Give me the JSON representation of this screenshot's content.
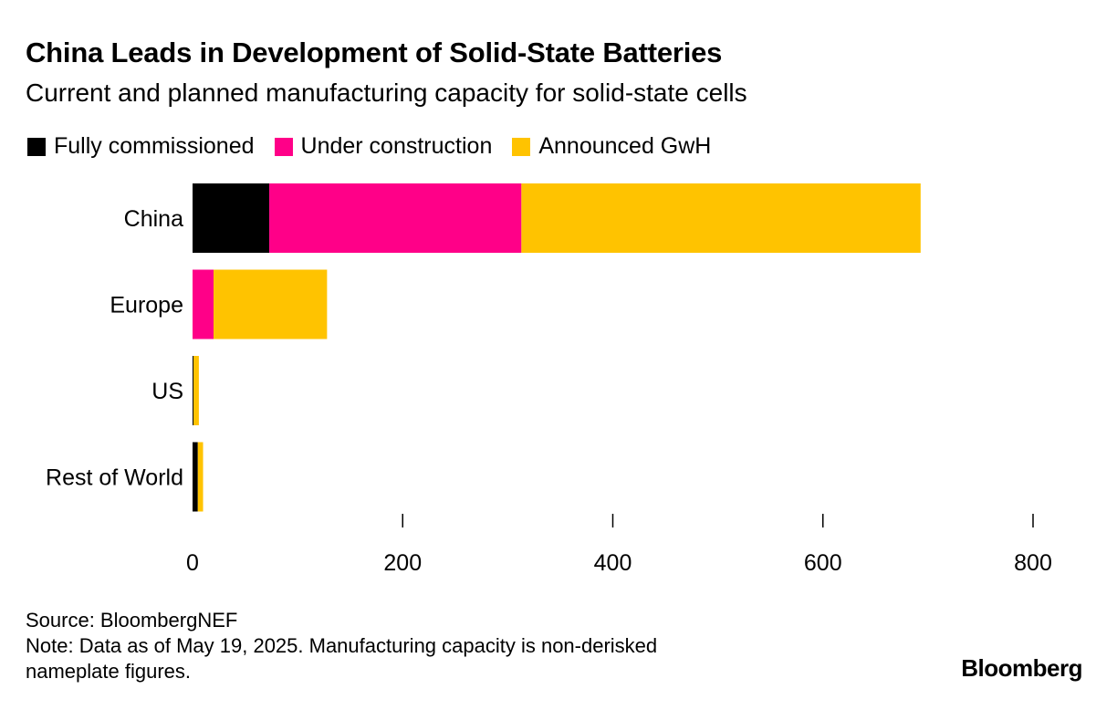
{
  "chart_data": {
    "type": "bar",
    "orientation": "horizontal",
    "stacked": true,
    "title": "China Leads in Development of Solid-State Batteries",
    "subtitle": "Current and planned manufacturing capacity for solid-state cells",
    "categories": [
      "China",
      "Europe",
      "US",
      "Rest of World"
    ],
    "series": [
      {
        "name": "Fully commissioned",
        "color": "#000000",
        "values": [
          73,
          0,
          1,
          5
        ]
      },
      {
        "name": "Under construction",
        "color": "#ff0088",
        "values": [
          240,
          20,
          0,
          0
        ]
      },
      {
        "name": "Announced GwH",
        "color": "#ffc300",
        "values": [
          380,
          108,
          5,
          5
        ]
      }
    ],
    "xlim": [
      0,
      800
    ],
    "xticks": [
      0,
      200,
      400,
      600,
      800
    ],
    "xlabel": "",
    "ylabel": "",
    "grid": false,
    "legend": "top-left"
  },
  "source": "Source: BloombergNEF",
  "note_line1": "Note: Data as of May 19, 2025. Manufacturing capacity is non-derisked",
  "note_line2": "nameplate figures.",
  "logo": "Bloomberg"
}
